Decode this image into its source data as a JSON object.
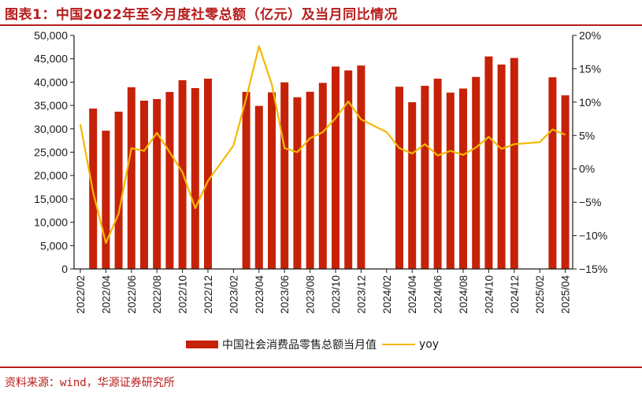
{
  "header": {
    "title": "图表1：中国2022年至今月度社零总额（亿元）及当月同比情况"
  },
  "footer": {
    "source": "资料来源：wind，华源证券研究所"
  },
  "legend": {
    "bar_label": "中国社会消费品零售总额当月值",
    "line_label": "yoy"
  },
  "colors": {
    "bar": "#c62208",
    "line": "#f5b800",
    "accent": "#b71c1c"
  },
  "chart_data": {
    "type": "bar",
    "title": "图表1：中国2022年至今月度社零总额（亿元）及当月同比情况",
    "xlabel": "",
    "ylabel": "亿元",
    "y2label": "yoy",
    "ylim": [
      0,
      50000
    ],
    "y2lim": [
      -15,
      20
    ],
    "grid": false,
    "legend_position": "bottom",
    "y_ticks": [
      "0",
      "5,000",
      "10,000",
      "15,000",
      "20,000",
      "25,000",
      "30,000",
      "35,000",
      "40,000",
      "45,000",
      "50,000"
    ],
    "y2_ticks": [
      "-15%",
      "-10%",
      "-5%",
      "0%",
      "5%",
      "10%",
      "15%",
      "20%"
    ],
    "x_tick_labels": [
      "2022/02",
      "2022/04",
      "2022/06",
      "2022/08",
      "2022/10",
      "2022/12",
      "2023/02",
      "2023/04",
      "2023/06",
      "2023/08",
      "2023/10",
      "2023/12",
      "2024/02",
      "2024/04",
      "2024/06",
      "2024/08",
      "2024/10",
      "2024/12",
      "2025/02",
      "2025/04"
    ],
    "categories": [
      "2022/02",
      "2022/03",
      "2022/04",
      "2022/05",
      "2022/06",
      "2022/07",
      "2022/08",
      "2022/09",
      "2022/10",
      "2022/11",
      "2022/12",
      "2023/01",
      "2023/02",
      "2023/03",
      "2023/04",
      "2023/05",
      "2023/06",
      "2023/07",
      "2023/08",
      "2023/09",
      "2023/10",
      "2023/11",
      "2023/12",
      "2024/01",
      "2024/02",
      "2024/03",
      "2024/04",
      "2024/05",
      "2024/06",
      "2024/07",
      "2024/08",
      "2024/09",
      "2024/10",
      "2024/11",
      "2024/12",
      "2025/01",
      "2025/02",
      "2025/03",
      "2025/04"
    ],
    "series": [
      {
        "name": "中国社会消费品零售总额当月值",
        "type": "bar",
        "axis": "left",
        "values": [
          null,
          34340,
          29600,
          33670,
          38890,
          36030,
          36370,
          37880,
          40400,
          38720,
          40740,
          null,
          null,
          37900,
          34910,
          37800,
          39950,
          36760,
          37930,
          39830,
          43330,
          42500,
          43550,
          null,
          null,
          39020,
          35700,
          39210,
          40730,
          37760,
          38630,
          41110,
          45500,
          43760,
          45170,
          null,
          null,
          41030,
          37170
        ]
      },
      {
        "name": "yoy",
        "type": "line",
        "axis": "right",
        "unit": "%",
        "values": [
          6.7,
          -3.5,
          -11.1,
          -6.7,
          3.1,
          2.7,
          5.4,
          2.5,
          -0.5,
          -5.9,
          -1.8,
          null,
          3.5,
          10.6,
          18.4,
          12.7,
          3.1,
          2.5,
          4.6,
          5.5,
          7.6,
          10.1,
          7.4,
          null,
          5.5,
          3.1,
          2.3,
          3.7,
          2.0,
          2.7,
          2.1,
          3.2,
          4.8,
          3.0,
          3.7,
          null,
          4.0,
          5.9,
          5.1
        ]
      }
    ]
  }
}
